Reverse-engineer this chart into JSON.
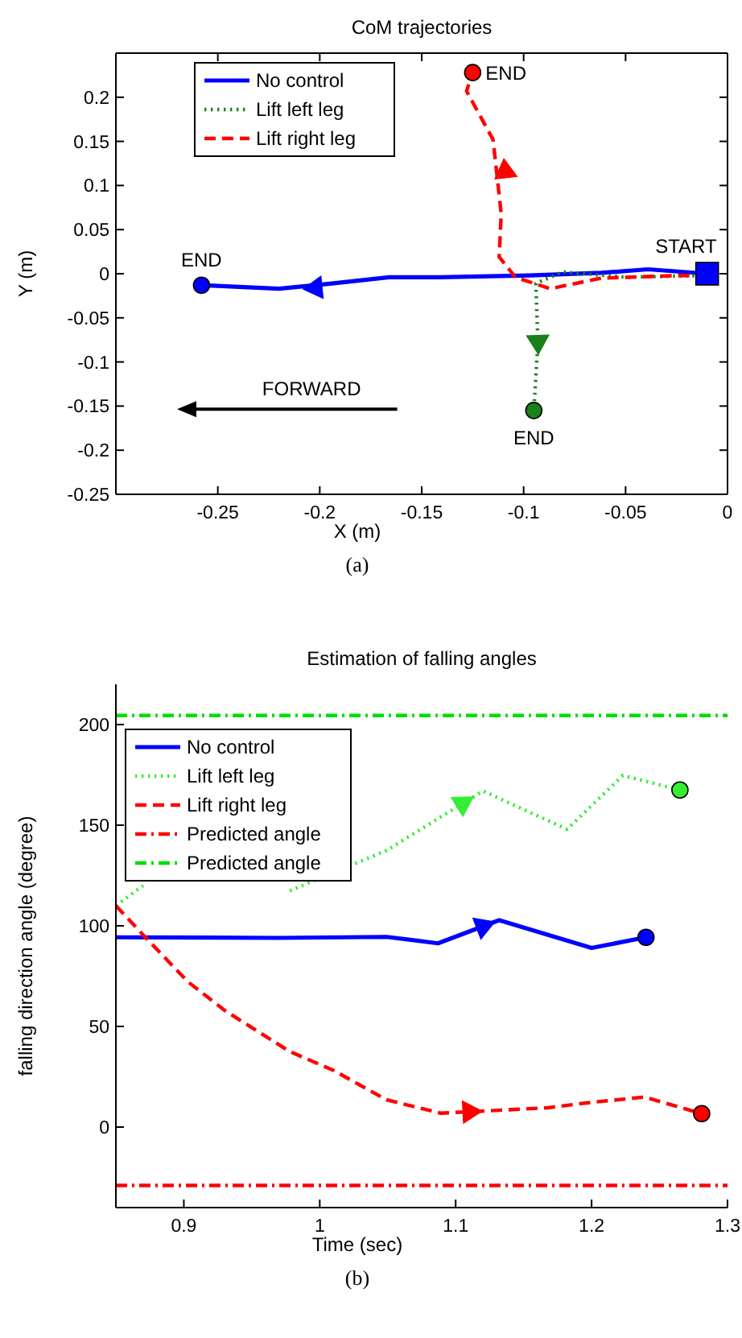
{
  "chart_data": [
    {
      "type": "line",
      "title": "CoM trajectories",
      "xlabel": "X (m)",
      "ylabel": "Y (m)",
      "xlim": [
        -0.3,
        0
      ],
      "ylim": [
        -0.25,
        0.25
      ],
      "xticks": [
        -0.25,
        -0.2,
        -0.15,
        -0.1,
        -0.05,
        0
      ],
      "yticks": [
        -0.25,
        -0.2,
        -0.15,
        -0.1,
        -0.05,
        0,
        0.05,
        0.1,
        0.15,
        0.2
      ],
      "legend": "top left",
      "grid": false,
      "series": [
        {
          "name": "No control",
          "color": "#0000ff",
          "line_style": "solid",
          "x": [
            -0.01,
            -0.039,
            -0.062,
            -0.097,
            -0.141,
            -0.166,
            -0.194,
            -0.22,
            -0.258
          ],
          "values": [
            0,
            0.005,
            0.001,
            -0.002,
            -0.004,
            -0.004,
            -0.011,
            -0.017,
            -0.013
          ]
        },
        {
          "name": "Lift left leg",
          "color": "#1a801a",
          "line_style": "dotted",
          "x": [
            -0.01,
            -0.05,
            -0.081,
            -0.094,
            -0.093,
            -0.095
          ],
          "values": [
            -0.002,
            -0.004,
            0.002,
            -0.011,
            -0.077,
            -0.155
          ]
        },
        {
          "name": "Lift right leg",
          "color": "#ff0000",
          "line_style": "dashed",
          "x": [
            -0.01,
            -0.023,
            -0.062,
            -0.087,
            -0.104,
            -0.112,
            -0.111,
            -0.115,
            -0.128,
            -0.125
          ],
          "values": [
            -0.002,
            -0.002,
            -0.005,
            -0.017,
            -0.004,
            0.019,
            0.068,
            0.152,
            0.207,
            0.228
          ]
        },
        {
          "type": "scatter",
          "marker": "triangle",
          "color": "#0000ff",
          "x": [
            -0.202
          ],
          "values": [
            -0.016
          ]
        },
        {
          "type": "scatter",
          "marker": "triangle",
          "color": "#1a801a",
          "x": [
            -0.093
          ],
          "values": [
            -0.077
          ]
        },
        {
          "type": "scatter",
          "marker": "triangle",
          "color": "#ff0000",
          "x": [
            -0.109
          ],
          "values": [
            0.116
          ]
        },
        {
          "type": "scatter",
          "marker": "circle",
          "color": "#0000ff",
          "x": [
            -0.258
          ],
          "values": [
            -0.013
          ]
        },
        {
          "type": "scatter",
          "marker": "circle",
          "color": "#1a801a",
          "x": [
            -0.095
          ],
          "values": [
            -0.155
          ]
        },
        {
          "type": "scatter",
          "marker": "circle",
          "color": "#ff0000",
          "x": [
            -0.125
          ],
          "values": [
            0.228
          ]
        },
        {
          "type": "scatter",
          "marker": "square",
          "color": "#0000ff",
          "x": [
            -0.01
          ],
          "values": [
            0
          ]
        }
      ],
      "annotations": [
        {
          "text": "END",
          "x": -0.258,
          "y": -0.013
        },
        {
          "text": "END",
          "x": -0.125,
          "y": 0.228
        },
        {
          "text": "END",
          "x": -0.095,
          "y": -0.155
        },
        {
          "text": "START",
          "x": -0.01,
          "y": 0
        },
        "FORWARD",
        "(a)"
      ]
    },
    {
      "type": "line",
      "title": "Estimation of falling angles",
      "xlabel": "Time (sec)",
      "ylabel": "falling direction angle (degree)",
      "xlim": [
        0.85,
        1.3
      ],
      "ylim": [
        -40,
        220
      ],
      "xticks": [
        0.9,
        1,
        1.1,
        1.2,
        1.3
      ],
      "yticks": [
        0,
        50,
        100,
        150,
        200
      ],
      "legend": "top left",
      "grid": false,
      "series": [
        {
          "name": "No control",
          "color": "#0000ff",
          "line_style": "solid",
          "x": [
            0.85,
            0.97,
            1.049,
            1.087,
            1.132,
            1.2,
            1.24
          ],
          "values": [
            94.3,
            94,
            94.5,
            91.3,
            102.8,
            89,
            94.3
          ]
        },
        {
          "name": "Lift left leg",
          "color": "#33ee33",
          "line_style": "dotted",
          "x": [
            0.85,
            0.87,
            0.92,
            0.978,
            1.049,
            1.12,
            1.182,
            1.223,
            1.265
          ],
          "values": [
            110,
            120,
            null,
            117.4,
            137.4,
            167,
            148,
            174.7,
            167.5
          ]
        },
        {
          "name": "Lift right leg",
          "color": "#ff0000",
          "line_style": "dashed",
          "x": [
            0.85,
            0.871,
            0.903,
            0.931,
            0.978,
            1.01,
            1.049,
            1.089,
            1.168,
            1.2,
            1.239,
            1.281
          ],
          "values": [
            110,
            94.8,
            72.2,
            57.5,
            37.5,
            28.2,
            13.6,
            6.9,
            9.6,
            12.3,
            14.9,
            6.7
          ]
        },
        {
          "name": "Predicted angle",
          "color": "#ff0000",
          "line_style": "dashdot",
          "x": [
            0.85,
            1.3
          ],
          "values": [
            -29,
            -29
          ]
        },
        {
          "name": "Predicted angle",
          "color": "#00dd00",
          "line_style": "dashdot",
          "x": [
            0.85,
            1.3
          ],
          "values": [
            204.5,
            204.5
          ]
        },
        {
          "type": "scatter",
          "marker": "triangle",
          "color": "#0000ff",
          "x": [
            1.12
          ],
          "values": [
            99.7
          ]
        },
        {
          "type": "scatter",
          "marker": "triangle",
          "color": "#33ee33",
          "x": [
            1.105
          ],
          "values": [
            160.7
          ]
        },
        {
          "type": "scatter",
          "marker": "triangle",
          "color": "#ff0000",
          "x": [
            1.11
          ],
          "values": [
            7.6
          ]
        },
        {
          "type": "scatter",
          "marker": "circle",
          "color": "#0000ff",
          "x": [
            1.24
          ],
          "values": [
            94.3
          ]
        },
        {
          "type": "scatter",
          "marker": "circle",
          "color": "#33ee33",
          "x": [
            1.265
          ],
          "values": [
            167.5
          ]
        },
        {
          "type": "scatter",
          "marker": "circle",
          "color": "#ff0000",
          "x": [
            1.281
          ],
          "values": [
            6.7
          ]
        }
      ],
      "annotations": [
        "(b)"
      ]
    }
  ]
}
